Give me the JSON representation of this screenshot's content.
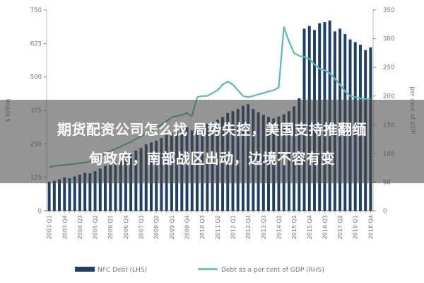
{
  "chart_data": {
    "type": "bar+line",
    "categories": [
      "2003 Q1",
      "2003 Q2",
      "2003 Q3",
      "2003 Q4",
      "2004 Q1",
      "2004 Q2",
      "2004 Q3",
      "2004 Q4",
      "2005 Q1",
      "2005 Q2",
      "2005 Q3",
      "2005 Q4",
      "2006 Q1",
      "2006 Q2",
      "2006 Q3",
      "2006 Q4",
      "2007 Q1",
      "2007 Q2",
      "2007 Q3",
      "2007 Q4",
      "2008 Q1",
      "2008 Q2",
      "2008 Q3",
      "2008 Q4",
      "2009 Q1",
      "2009 Q2",
      "2009 Q3",
      "2009 Q4",
      "2010 Q1",
      "2010 Q2",
      "2010 Q3",
      "2010 Q4",
      "2011 Q1",
      "2011 Q2",
      "2011 Q3",
      "2011 Q4",
      "2012 Q1",
      "2012 Q2",
      "2012 Q3",
      "2012 Q4",
      "2013 Q1",
      "2013 Q2",
      "2013 Q3",
      "2013 Q4",
      "2014 Q1",
      "2014 Q2",
      "2014 Q3",
      "2014 Q4",
      "2015 Q1",
      "2015 Q2",
      "2015 Q3",
      "2015 Q4",
      "2016 Q1",
      "2016 Q2",
      "2016 Q3",
      "2016 Q4",
      "2017 Q1",
      "2017 Q2",
      "2017 Q3",
      "2017 Q4",
      "2018 Q1",
      "2018 Q2",
      "2018 Q3",
      "2018 Q4"
    ],
    "x_tick_labels": [
      "2003 Q1",
      "2003 Q4",
      "2004 Q3",
      "2005 Q2",
      "2006 Q1",
      "2006 Q4",
      "2007 Q3",
      "2008 Q2",
      "2009 Q1",
      "2009 Q4",
      "2010 Q3",
      "2011 Q2",
      "2012 Q1",
      "2012 Q4",
      "2013 Q3",
      "2014 Q2",
      "2015 Q1",
      "2015 Q4",
      "2016 Q3",
      "2017 Q2",
      "2018 Q1",
      "2018 Q4"
    ],
    "series": [
      {
        "name": "NFC Debt (LHS)",
        "axis": "left",
        "type": "bar",
        "color": "#1f3f66",
        "values": [
          108,
          112,
          118,
          125,
          122,
          128,
          135,
          142,
          140,
          148,
          158,
          168,
          172,
          182,
          195,
          208,
          215,
          225,
          235,
          248,
          255,
          262,
          272,
          285,
          290,
          298,
          305,
          312,
          300,
          308,
          318,
          325,
          330,
          340,
          350,
          365,
          372,
          380,
          392,
          398,
          380,
          368,
          358,
          350,
          345,
          352,
          360,
          372,
          390,
          420,
          680,
          690,
          675,
          700,
          705,
          710,
          670,
          680,
          660,
          640,
          630,
          620,
          600,
          610
        ]
      },
      {
        "name": "Debt as a per cent of GDP (RHS)",
        "axis": "right",
        "type": "line",
        "color": "#5ab8b8",
        "values": [
          76,
          78,
          79,
          80,
          81,
          82,
          83,
          84,
          86,
          90,
          95,
          100,
          104,
          108,
          112,
          116,
          120,
          125,
          130,
          135,
          140,
          145,
          150,
          156,
          163,
          165,
          167,
          170,
          165,
          198,
          200,
          200,
          205,
          210,
          220,
          225,
          220,
          210,
          200,
          198,
          200,
          203,
          205,
          208,
          210,
          215,
          320,
          295,
          275,
          270,
          268,
          265,
          255,
          248,
          245,
          240,
          230,
          220,
          208,
          200,
          198,
          196,
          195,
          195
        ]
      }
    ],
    "y_left": {
      "min": 0,
      "max": 750,
      "ticks": [
        "0",
        "125",
        "250",
        "375",
        "500",
        "625",
        "750"
      ],
      "label": "$ billion"
    },
    "y_right": {
      "min": 0,
      "max": 350,
      "ticks": [
        "0",
        "50",
        "100",
        "150",
        "200",
        "250",
        "300",
        "350"
      ],
      "label": "per cent of GDP"
    },
    "legend_position": "bottom",
    "grid": false
  },
  "overlay": {
    "line1": "期货配资公司怎么找 局势失控，美国支持推翻缅",
    "line2": "甸政府，南部战区出动，边境不容有变"
  }
}
